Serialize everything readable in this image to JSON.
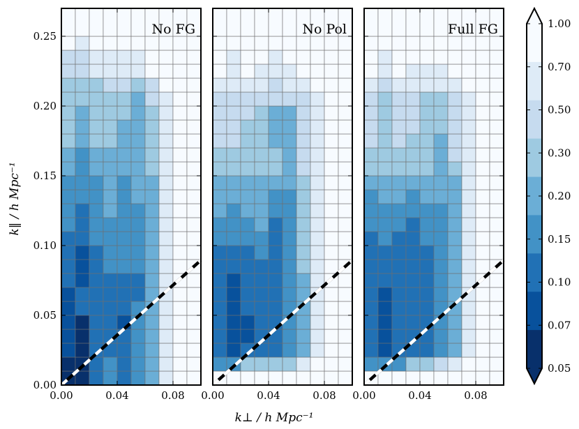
{
  "chart_data": {
    "type": "heatmap",
    "xlabel": "k⊥ / h Mpc⁻¹",
    "ylabel": "k‖ / h Mpc⁻¹",
    "xlim": [
      0,
      0.1
    ],
    "ylim": [
      0,
      0.27
    ],
    "x_ticks": [
      "0.00",
      "0.04",
      "0.08"
    ],
    "y_ticks": [
      "0.00",
      "0.05",
      "0.10",
      "0.15",
      "0.20",
      "0.25"
    ],
    "x_edges": [
      0,
      0.01,
      0.02,
      0.03,
      0.04,
      0.05,
      0.06,
      0.07,
      0.08,
      0.09,
      0.1
    ],
    "y_edges": [
      0,
      0.01,
      0.02,
      0.03,
      0.04,
      0.05,
      0.06,
      0.07,
      0.08,
      0.09,
      0.1,
      0.11,
      0.12,
      0.13,
      0.14,
      0.15,
      0.16,
      0.17,
      0.18,
      0.19,
      0.2,
      0.21,
      0.22,
      0.23,
      0.24,
      0.25,
      0.27
    ],
    "wedge_line": {
      "x": [
        0,
        0.1
      ],
      "y": [
        0,
        0.0895
      ]
    },
    "colorbar": {
      "ticks": [
        "1.00",
        "0.70",
        "0.50",
        "0.30",
        "0.20",
        "0.15",
        "0.10",
        "0.07",
        "0.05"
      ],
      "colors": [
        "#f7fbff",
        "#deebf7",
        "#c6dbef",
        "#9ecae1",
        "#6baed6",
        "#4292c6",
        "#2171b5",
        "#08519c",
        "#08306b"
      ],
      "extend": "both"
    },
    "panels": [
      {
        "title": "No FG",
        "bins": [
          [
            0.032,
            0.028,
            0.1,
            0.12,
            0.1,
            0.15,
            0.2,
            0.7,
            1.0,
            1.0
          ],
          [
            0.032,
            0.028,
            0.1,
            0.12,
            0.1,
            0.15,
            0.2,
            0.7,
            1.0,
            1.0
          ],
          [
            0.06,
            0.028,
            0.1,
            0.1,
            0.1,
            0.15,
            0.2,
            0.7,
            1.0,
            1.0
          ],
          [
            0.06,
            0.028,
            0.1,
            0.1,
            0.09,
            0.15,
            0.2,
            0.7,
            1.0,
            1.0
          ],
          [
            0.06,
            0.045,
            0.1,
            0.1,
            0.06,
            0.15,
            0.2,
            0.7,
            1.0,
            1.0
          ],
          [
            0.06,
            0.08,
            0.1,
            0.1,
            0.1,
            0.15,
            0.2,
            0.7,
            1.0,
            1.0
          ],
          [
            0.06,
            0.08,
            0.1,
            0.1,
            0.1,
            0.1,
            0.2,
            0.7,
            1.0,
            1.0
          ],
          [
            0.1,
            0.06,
            0.1,
            0.1,
            0.1,
            0.1,
            0.2,
            0.7,
            1.0,
            1.0
          ],
          [
            0.1,
            0.06,
            0.1,
            0.15,
            0.15,
            0.15,
            0.2,
            0.7,
            1.0,
            1.0
          ],
          [
            0.1,
            0.06,
            0.1,
            0.15,
            0.15,
            0.15,
            0.2,
            0.7,
            1.0,
            1.0
          ],
          [
            0.1,
            0.1,
            0.15,
            0.15,
            0.15,
            0.15,
            0.2,
            0.7,
            1.0,
            1.0
          ],
          [
            0.15,
            0.1,
            0.15,
            0.15,
            0.15,
            0.15,
            0.2,
            0.7,
            1.0,
            1.0
          ],
          [
            0.15,
            0.1,
            0.15,
            0.2,
            0.15,
            0.15,
            0.2,
            0.7,
            1.0,
            1.0
          ],
          [
            0.15,
            0.15,
            0.15,
            0.2,
            0.15,
            0.2,
            0.2,
            0.7,
            1.0,
            1.0
          ],
          [
            0.15,
            0.15,
            0.15,
            0.2,
            0.15,
            0.2,
            0.2,
            0.7,
            1.0,
            1.0
          ],
          [
            0.2,
            0.15,
            0.2,
            0.2,
            0.2,
            0.2,
            0.3,
            0.7,
            1.0,
            1.0
          ],
          [
            0.2,
            0.15,
            0.2,
            0.2,
            0.2,
            0.2,
            0.3,
            0.7,
            1.0,
            1.0
          ],
          [
            0.3,
            0.2,
            0.3,
            0.3,
            0.2,
            0.2,
            0.3,
            0.7,
            1.0,
            1.0
          ],
          [
            0.3,
            0.2,
            0.3,
            0.3,
            0.2,
            0.2,
            0.3,
            0.7,
            1.0,
            1.0
          ],
          [
            0.3,
            0.2,
            0.3,
            0.3,
            0.3,
            0.2,
            0.3,
            0.7,
            1.0,
            1.0
          ],
          [
            0.3,
            0.3,
            0.3,
            0.3,
            0.3,
            0.2,
            0.5,
            0.7,
            1.0,
            1.0
          ],
          [
            0.3,
            0.3,
            0.3,
            0.5,
            0.5,
            0.3,
            0.5,
            1.0,
            1.0,
            1.0
          ],
          [
            0.5,
            0.5,
            0.7,
            0.7,
            0.7,
            0.7,
            1.0,
            1.0,
            1.0,
            1.0
          ],
          [
            0.5,
            0.5,
            0.7,
            0.7,
            0.7,
            0.7,
            1.0,
            1.0,
            1.0,
            1.0
          ],
          [
            1.0,
            0.7,
            1.0,
            1.0,
            1.0,
            1.0,
            1.0,
            1.0,
            1.0,
            1.0
          ],
          [
            1.0,
            1.0,
            1.0,
            1.0,
            1.0,
            1.0,
            1.0,
            1.0,
            1.0,
            1.0
          ]
        ]
      },
      {
        "title": "No Pol",
        "bins": [
          [
            1.0,
            1.0,
            1.0,
            1.0,
            1.0,
            1.0,
            1.0,
            1.0,
            1.0,
            1.0
          ],
          [
            0.15,
            0.15,
            0.3,
            0.3,
            0.3,
            0.3,
            0.7,
            1.0,
            1.0,
            1.0
          ],
          [
            0.1,
            0.06,
            0.1,
            0.1,
            0.1,
            0.15,
            0.2,
            0.7,
            1.0,
            1.0
          ],
          [
            0.1,
            0.06,
            0.06,
            0.1,
            0.1,
            0.15,
            0.2,
            0.7,
            1.0,
            1.0
          ],
          [
            0.1,
            0.06,
            0.06,
            0.1,
            0.1,
            0.15,
            0.2,
            0.7,
            1.0,
            1.0
          ],
          [
            0.1,
            0.06,
            0.08,
            0.1,
            0.1,
            0.15,
            0.2,
            0.7,
            1.0,
            1.0
          ],
          [
            0.1,
            0.06,
            0.08,
            0.1,
            0.1,
            0.15,
            0.2,
            0.7,
            1.0,
            1.0
          ],
          [
            0.08,
            0.06,
            0.1,
            0.1,
            0.1,
            0.15,
            0.2,
            0.7,
            1.0,
            1.0
          ],
          [
            0.1,
            0.1,
            0.1,
            0.1,
            0.1,
            0.15,
            0.3,
            0.7,
            1.0,
            1.0
          ],
          [
            0.1,
            0.1,
            0.1,
            0.15,
            0.1,
            0.15,
            0.3,
            0.7,
            1.0,
            1.0
          ],
          [
            0.15,
            0.15,
            0.15,
            0.15,
            0.1,
            0.15,
            0.3,
            0.7,
            1.0,
            1.0
          ],
          [
            0.15,
            0.15,
            0.15,
            0.2,
            0.1,
            0.15,
            0.3,
            0.7,
            1.0,
            1.0
          ],
          [
            0.2,
            0.15,
            0.2,
            0.2,
            0.15,
            0.15,
            0.3,
            0.7,
            1.0,
            1.0
          ],
          [
            0.2,
            0.2,
            0.2,
            0.2,
            0.15,
            0.15,
            0.3,
            0.7,
            1.0,
            1.0
          ],
          [
            0.2,
            0.2,
            0.2,
            0.2,
            0.2,
            0.2,
            0.3,
            0.7,
            1.0,
            1.0
          ],
          [
            0.3,
            0.3,
            0.3,
            0.3,
            0.3,
            0.2,
            0.5,
            0.7,
            1.0,
            1.0
          ],
          [
            0.3,
            0.3,
            0.3,
            0.3,
            0.3,
            0.2,
            0.5,
            0.7,
            1.0,
            1.0
          ],
          [
            0.5,
            0.5,
            0.3,
            0.3,
            0.2,
            0.2,
            0.5,
            0.7,
            1.0,
            1.0
          ],
          [
            0.5,
            0.5,
            0.3,
            0.3,
            0.2,
            0.2,
            0.5,
            0.7,
            1.0,
            1.0
          ],
          [
            0.5,
            0.5,
            0.5,
            0.3,
            0.2,
            0.2,
            0.5,
            0.7,
            1.0,
            1.0
          ],
          [
            0.5,
            0.5,
            0.5,
            0.5,
            0.5,
            0.5,
            0.5,
            0.7,
            1.0,
            1.0
          ],
          [
            0.7,
            0.7,
            0.7,
            0.7,
            0.5,
            0.7,
            0.7,
            1.0,
            1.0,
            1.0
          ],
          [
            1.0,
            0.7,
            1.0,
            0.7,
            0.7,
            0.7,
            1.0,
            1.0,
            1.0,
            1.0
          ],
          [
            1.0,
            0.7,
            1.0,
            1.0,
            0.7,
            1.0,
            1.0,
            1.0,
            1.0,
            1.0
          ],
          [
            1.0,
            1.0,
            1.0,
            1.0,
            1.0,
            1.0,
            1.0,
            1.0,
            1.0,
            1.0
          ],
          [
            1.0,
            1.0,
            1.0,
            1.0,
            1.0,
            1.0,
            1.0,
            1.0,
            1.0,
            1.0
          ]
        ]
      },
      {
        "title": "Full FG",
        "bins": [
          [
            1.0,
            1.0,
            1.0,
            1.0,
            1.0,
            1.0,
            1.0,
            1.0,
            1.0,
            1.0
          ],
          [
            0.15,
            0.15,
            0.15,
            0.3,
            0.3,
            0.5,
            0.7,
            1.0,
            1.0,
            1.0
          ],
          [
            0.08,
            0.06,
            0.1,
            0.1,
            0.1,
            0.15,
            0.2,
            0.7,
            1.0,
            1.0
          ],
          [
            0.08,
            0.06,
            0.1,
            0.1,
            0.1,
            0.15,
            0.2,
            0.7,
            1.0,
            1.0
          ],
          [
            0.08,
            0.06,
            0.1,
            0.1,
            0.1,
            0.15,
            0.2,
            0.7,
            1.0,
            1.0
          ],
          [
            0.08,
            0.06,
            0.1,
            0.1,
            0.1,
            0.15,
            0.2,
            0.7,
            1.0,
            1.0
          ],
          [
            0.08,
            0.06,
            0.1,
            0.1,
            0.1,
            0.15,
            0.2,
            0.7,
            1.0,
            1.0
          ],
          [
            0.08,
            0.08,
            0.1,
            0.1,
            0.1,
            0.15,
            0.2,
            0.7,
            1.0,
            1.0
          ],
          [
            0.1,
            0.08,
            0.1,
            0.1,
            0.1,
            0.15,
            0.2,
            0.7,
            1.0,
            1.0
          ],
          [
            0.1,
            0.1,
            0.1,
            0.1,
            0.1,
            0.15,
            0.2,
            0.7,
            1.0,
            1.0
          ],
          [
            0.1,
            0.15,
            0.1,
            0.1,
            0.15,
            0.15,
            0.2,
            0.7,
            1.0,
            1.0
          ],
          [
            0.15,
            0.15,
            0.15,
            0.1,
            0.15,
            0.15,
            0.2,
            0.7,
            1.0,
            1.0
          ],
          [
            0.15,
            0.15,
            0.15,
            0.15,
            0.15,
            0.15,
            0.2,
            0.7,
            1.0,
            1.0
          ],
          [
            0.15,
            0.2,
            0.2,
            0.15,
            0.2,
            0.2,
            0.2,
            0.7,
            1.0,
            1.0
          ],
          [
            0.2,
            0.2,
            0.2,
            0.2,
            0.2,
            0.2,
            0.2,
            0.7,
            1.0,
            1.0
          ],
          [
            0.3,
            0.3,
            0.3,
            0.3,
            0.3,
            0.2,
            0.3,
            0.7,
            1.0,
            1.0
          ],
          [
            0.3,
            0.3,
            0.3,
            0.3,
            0.3,
            0.2,
            0.5,
            0.7,
            1.0,
            1.0
          ],
          [
            0.5,
            0.3,
            0.5,
            0.3,
            0.3,
            0.2,
            0.5,
            0.7,
            1.0,
            1.0
          ],
          [
            0.5,
            0.3,
            0.5,
            0.5,
            0.3,
            0.3,
            0.5,
            0.7,
            1.0,
            1.0
          ],
          [
            0.5,
            0.3,
            0.5,
            0.5,
            0.3,
            0.3,
            0.5,
            0.7,
            1.0,
            1.0
          ],
          [
            0.5,
            0.3,
            0.5,
            0.5,
            0.3,
            0.3,
            0.5,
            0.7,
            1.0,
            1.0
          ],
          [
            0.7,
            0.5,
            0.7,
            0.7,
            0.7,
            0.7,
            0.7,
            1.0,
            1.0,
            1.0
          ],
          [
            1.0,
            0.7,
            1.0,
            0.7,
            0.7,
            0.7,
            1.0,
            1.0,
            1.0,
            1.0
          ],
          [
            1.0,
            0.7,
            1.0,
            1.0,
            1.0,
            1.0,
            1.0,
            1.0,
            1.0,
            1.0
          ],
          [
            1.0,
            1.0,
            1.0,
            1.0,
            1.0,
            1.0,
            1.0,
            1.0,
            1.0,
            1.0
          ],
          [
            1.0,
            1.0,
            1.0,
            1.0,
            1.0,
            1.0,
            1.0,
            1.0,
            1.0,
            1.0
          ]
        ]
      }
    ]
  }
}
